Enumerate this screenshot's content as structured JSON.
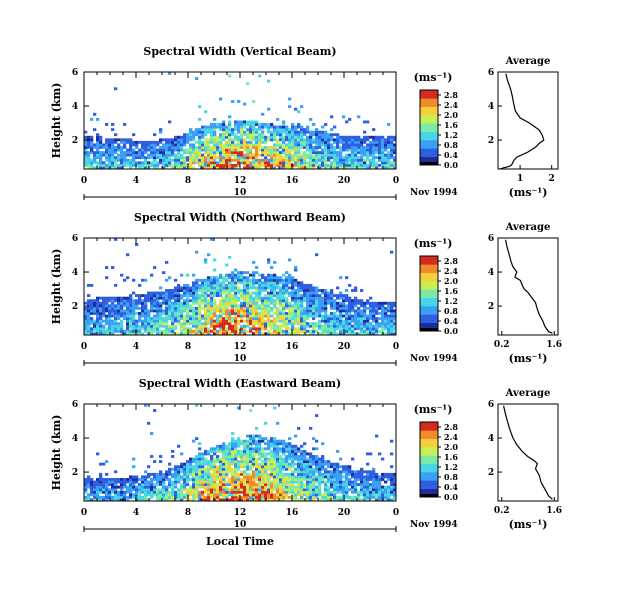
{
  "chart_data": [
    {
      "type": "heatmap",
      "title": "Spectral Width (Vertical Beam)",
      "ylabel": "Height (km)",
      "yticks": [
        "2",
        "4",
        "6"
      ],
      "ylim": [
        0.3,
        6
      ],
      "xticks": [
        "0",
        "4",
        "8",
        "12",
        "16",
        "20",
        "0"
      ],
      "xlim": [
        0,
        24
      ],
      "date_marker": "10",
      "date_label": "Nov 1994",
      "colorbar": {
        "unit": "(ms⁻¹)",
        "labels": [
          "0.0",
          "0.4",
          "0.8",
          "1.2",
          "1.6",
          "2.0",
          "2.4",
          "2.8"
        ],
        "range": [
          0,
          3.0
        ]
      },
      "colormap": [
        "#1e2c9c",
        "#2f5fe0",
        "#3aa0f5",
        "#48d6e6",
        "#7be9a8",
        "#c9ef55",
        "#f5d03a",
        "#f08a2a",
        "#d42a20"
      ],
      "echo_top_km": [
        2.3,
        2.2,
        2.1,
        2.1,
        2.0,
        2.0,
        2.1,
        2.2,
        2.5,
        2.8,
        3.0,
        3.2,
        3.2,
        3.1,
        3.0,
        2.9,
        2.9,
        2.7,
        2.5,
        2.4,
        2.3,
        2.2,
        2.2,
        2.2,
        2.2
      ],
      "intensity": [
        0.5,
        0.5,
        0.45,
        0.45,
        0.45,
        0.45,
        0.5,
        0.55,
        0.7,
        0.85,
        0.95,
        1.0,
        1.0,
        0.95,
        0.9,
        0.85,
        0.8,
        0.7,
        0.6,
        0.55,
        0.5,
        0.5,
        0.5,
        0.5,
        0.5
      ]
    },
    {
      "type": "heatmap",
      "title": "Spectral Width (Northward Beam)",
      "ylabel": "Height (km)",
      "yticks": [
        "2",
        "4",
        "6"
      ],
      "ylim": [
        0.3,
        6
      ],
      "xticks": [
        "0",
        "4",
        "8",
        "12",
        "16",
        "20",
        "0"
      ],
      "xlim": [
        0,
        24
      ],
      "date_marker": "10",
      "date_label": "Nov 1994",
      "colorbar": {
        "unit": "(ms⁻¹)",
        "labels": [
          "0.0",
          "0.4",
          "0.8",
          "1.2",
          "1.6",
          "2.0",
          "2.4",
          "2.8"
        ],
        "range": [
          0,
          3.0
        ]
      },
      "colormap": [
        "#1e2c9c",
        "#2f5fe0",
        "#3aa0f5",
        "#48d6e6",
        "#7be9a8",
        "#c9ef55",
        "#f5d03a",
        "#f08a2a",
        "#d42a20"
      ],
      "echo_top_km": [
        2.3,
        2.5,
        2.6,
        2.6,
        2.7,
        2.8,
        2.9,
        3.1,
        3.3,
        3.6,
        3.8,
        3.9,
        4.0,
        4.0,
        3.9,
        3.8,
        3.6,
        3.3,
        3.1,
        2.8,
        2.6,
        2.4,
        2.3,
        2.3,
        2.3
      ],
      "intensity": [
        0.45,
        0.45,
        0.45,
        0.45,
        0.5,
        0.5,
        0.55,
        0.6,
        0.7,
        0.85,
        0.95,
        1.0,
        0.95,
        0.9,
        0.8,
        0.75,
        0.7,
        0.6,
        0.55,
        0.5,
        0.5,
        0.45,
        0.45,
        0.45,
        0.45
      ]
    },
    {
      "type": "heatmap",
      "title": "Spectral Width (Eastward Beam)",
      "ylabel": "Height (km)",
      "yticks": [
        "2",
        "4",
        "6"
      ],
      "ylim": [
        0.3,
        6
      ],
      "xticks": [
        "0",
        "4",
        "8",
        "12",
        "16",
        "20",
        "0"
      ],
      "xlim": [
        0,
        24
      ],
      "date_marker": "10",
      "date_label": "Nov 1994",
      "xlabel": "Local Time",
      "colorbar": {
        "unit": "(ms⁻¹)",
        "labels": [
          "0.0",
          "0.4",
          "0.8",
          "1.2",
          "1.6",
          "2.0",
          "2.4",
          "2.8"
        ],
        "range": [
          0,
          3.0
        ]
      },
      "colormap": [
        "#1e2c9c",
        "#2f5fe0",
        "#3aa0f5",
        "#48d6e6",
        "#7be9a8",
        "#c9ef55",
        "#f5d03a",
        "#f08a2a",
        "#d42a20"
      ],
      "echo_top_km": [
        1.6,
        1.6,
        1.7,
        1.7,
        1.8,
        1.9,
        2.1,
        2.4,
        2.8,
        3.2,
        3.5,
        3.8,
        4.1,
        4.2,
        4.1,
        3.9,
        3.6,
        3.2,
        2.9,
        2.6,
        2.4,
        2.2,
        2.1,
        2.0,
        2.0
      ],
      "intensity": [
        0.45,
        0.45,
        0.45,
        0.45,
        0.5,
        0.5,
        0.55,
        0.6,
        0.75,
        0.9,
        1.0,
        1.0,
        1.0,
        0.95,
        0.9,
        0.8,
        0.7,
        0.65,
        0.6,
        0.55,
        0.5,
        0.5,
        0.45,
        0.45,
        0.45
      ]
    },
    {
      "type": "line",
      "title": "Average",
      "xlabel": "(ms⁻¹)",
      "xticks": [
        "1",
        "2"
      ],
      "xtick_values": [
        1,
        2
      ],
      "xlim": [
        0.3,
        2.2
      ],
      "yticks": [
        "2",
        "4",
        "6"
      ],
      "ylim": [
        0.3,
        6
      ],
      "x": [
        0.55,
        0.6,
        0.7,
        0.75,
        0.8,
        0.85,
        1.0,
        1.3,
        1.45,
        1.6,
        1.7,
        1.75,
        1.6,
        1.5,
        1.25,
        0.9,
        0.8,
        0.75,
        0.7,
        0.65,
        0.55,
        0.5,
        0.45,
        0.45,
        0.4,
        0.4,
        0.35
      ],
      "y": [
        5.9,
        5.5,
        5.0,
        4.6,
        4.1,
        3.7,
        3.3,
        3.0,
        2.8,
        2.6,
        2.3,
        2.0,
        1.8,
        1.6,
        1.3,
        1.0,
        0.8,
        0.6,
        0.5,
        0.45,
        0.4,
        0.38,
        0.35,
        0.33,
        0.32,
        0.31,
        0.3
      ]
    },
    {
      "type": "line",
      "title": "Average",
      "xlabel": "(ms⁻¹)",
      "xticks": [
        "0.2",
        "1.6"
      ],
      "xtick_values": [
        0.2,
        1.6
      ],
      "xlim": [
        0.1,
        1.7
      ],
      "yticks": [
        "2",
        "4",
        "6"
      ],
      "ylim": [
        0.3,
        6
      ],
      "x": [
        0.3,
        0.35,
        0.4,
        0.45,
        0.5,
        0.6,
        0.55,
        0.7,
        0.75,
        0.8,
        0.9,
        1.0,
        1.1,
        1.15,
        1.2,
        1.3,
        1.35,
        1.45,
        1.55
      ],
      "y": [
        5.9,
        5.4,
        5.0,
        4.6,
        4.3,
        4.0,
        3.7,
        3.5,
        3.2,
        3.0,
        2.8,
        2.5,
        2.2,
        1.8,
        1.5,
        1.1,
        0.8,
        0.5,
        0.4
      ]
    },
    {
      "type": "line",
      "title": "Average",
      "xlabel": "(ms⁻¹)",
      "xticks": [
        "0.2",
        "1.6"
      ],
      "xtick_values": [
        0.2,
        1.6
      ],
      "xlim": [
        0.1,
        1.7
      ],
      "yticks": [
        "2",
        "4",
        "6"
      ],
      "ylim": [
        0.3,
        6
      ],
      "x": [
        0.25,
        0.3,
        0.35,
        0.4,
        0.45,
        0.5,
        0.6,
        0.75,
        0.9,
        1.05,
        1.15,
        1.1,
        1.2,
        1.25,
        1.35,
        1.45,
        1.55
      ],
      "y": [
        5.9,
        5.4,
        5.0,
        4.6,
        4.3,
        4.0,
        3.6,
        3.2,
        2.9,
        2.7,
        2.5,
        2.2,
        1.8,
        1.4,
        1.0,
        0.6,
        0.4
      ]
    }
  ]
}
